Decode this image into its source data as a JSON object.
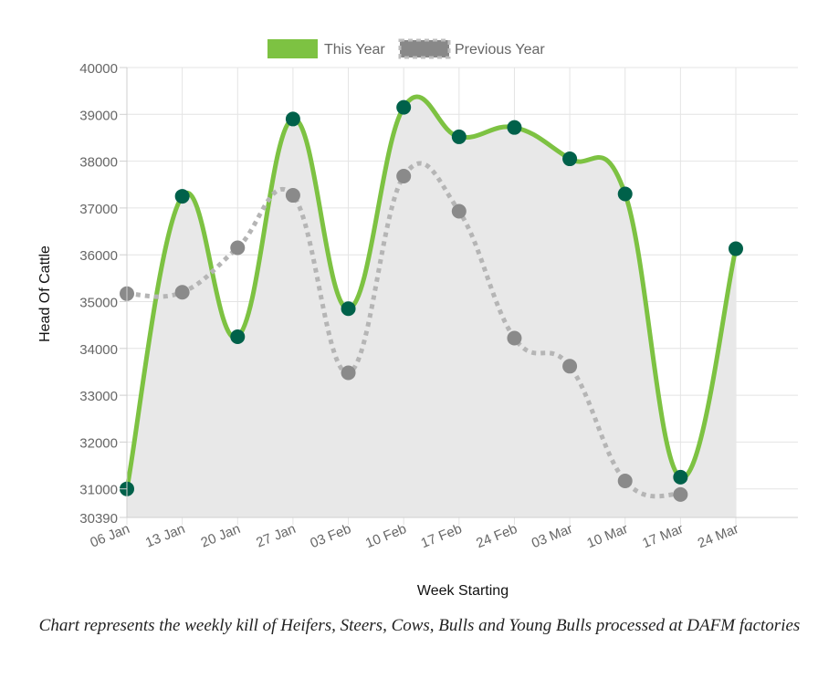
{
  "chart_data": {
    "type": "line",
    "categories": [
      "06 Jan",
      "13 Jan",
      "20 Jan",
      "27 Jan",
      "03 Feb",
      "10 Feb",
      "17 Feb",
      "24 Feb",
      "03 Mar",
      "10 Mar",
      "17 Mar",
      "24 Mar"
    ],
    "series": [
      {
        "name": "This Year",
        "values": [
          31000,
          37250,
          34250,
          38900,
          34850,
          39150,
          38520,
          38720,
          38050,
          37300,
          31250,
          36130
        ],
        "color": "#7dc242",
        "point_color": "#00614a",
        "style": "solid",
        "fill": "#e8e8e8"
      },
      {
        "name": "Previous Year",
        "values": [
          35170,
          35200,
          36150,
          37270,
          33480,
          37680,
          36930,
          34220,
          33620,
          31170,
          30880,
          null
        ],
        "color": "#b5b5b5",
        "point_color": "#8a8a8a",
        "style": "dashed"
      }
    ],
    "xlabel": "Week Starting",
    "ylabel": "Head Of Cattle",
    "ylim": [
      30390,
      40000
    ],
    "yticks": [
      "40000",
      "39000",
      "38000",
      "37000",
      "36000",
      "35000",
      "34000",
      "33000",
      "32000",
      "31000",
      "30390"
    ],
    "grid": true,
    "legend_position": "top-center"
  },
  "caption": "Chart represents the weekly kill of Heifers, Steers, Cows, Bulls and Young Bulls processed at DAFM factories"
}
